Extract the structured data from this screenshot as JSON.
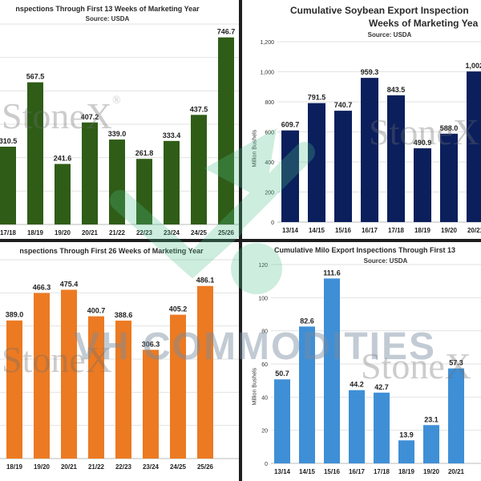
{
  "watermarks": {
    "stonex": "StoneX",
    "stonex_reg": "®",
    "vh_commodities": "VH COMMODITIES"
  },
  "chart_data": [
    {
      "type": "bar",
      "title": "nspections Through First 13 Weeks of Marketing Year",
      "source": "Source: USDA",
      "ylabel": "",
      "color": "#2f5d17",
      "categories": [
        "17/18",
        "18/19",
        "19/20",
        "20/21",
        "21/22",
        "22/23",
        "23/24",
        "24/25",
        "25/26"
      ],
      "values": [
        310.5,
        567.5,
        241.6,
        407.2,
        339.0,
        261.8,
        333.4,
        437.5,
        746.7
      ],
      "labels": [
        "310.5",
        "567.5",
        "241.6",
        "407.2",
        "339.0",
        "261.8",
        "333.4",
        "437.5",
        "746.7"
      ],
      "ylim": [
        0,
        800
      ],
      "yticks": [],
      "grid": true
    },
    {
      "type": "bar",
      "title": "Cumulative Soybean Export Inspection",
      "title2": "Weeks of Marketing Yea",
      "source": "Source: USDA",
      "ylabel": "Million Bushels",
      "color": "#0b1f5c",
      "categories": [
        "13/14",
        "14/15",
        "15/16",
        "16/17",
        "17/18",
        "18/19",
        "19/20",
        "20/21"
      ],
      "values": [
        609.7,
        791.5,
        740.7,
        959.3,
        843.5,
        490.9,
        588.0,
        1002.0
      ],
      "labels": [
        "609.7",
        "791.5",
        "740.7",
        "959.3",
        "843.5",
        "490.9",
        "588.0",
        "1,002."
      ],
      "ylim": [
        0,
        1200
      ],
      "yticks": [
        "0",
        "200",
        "400",
        "600",
        "800",
        "1,000",
        "1,200"
      ],
      "grid": true
    },
    {
      "type": "bar",
      "title": "nspections Through First 26 Weeks of Marketing Year",
      "source": "",
      "ylabel": "",
      "color": "#ec7a22",
      "categories": [
        "18/19",
        "19/20",
        "20/21",
        "21/22",
        "22/23",
        "23/24",
        "24/25",
        "25/26"
      ],
      "values": [
        389.0,
        466.3,
        475.4,
        400.7,
        388.6,
        306.3,
        405.2,
        486.1
      ],
      "labels": [
        "389.0",
        "466.3",
        "475.4",
        "400.7",
        "388.6",
        "306.3",
        "405.2",
        "486.1"
      ],
      "ylim": [
        0,
        560
      ],
      "yticks": [],
      "grid": true
    },
    {
      "type": "bar",
      "title": "Cumulative Milo Export Inspections Through First 13",
      "source": "Source: USDA",
      "ylabel": "Million Bushels",
      "color": "#3f8fd6",
      "categories": [
        "13/14",
        "14/15",
        "15/16",
        "16/17",
        "17/18",
        "18/19",
        "19/20",
        "20/21"
      ],
      "values": [
        50.7,
        82.6,
        111.6,
        44.2,
        42.7,
        13.9,
        23.1,
        57.3
      ],
      "labels": [
        "50.7",
        "82.6",
        "111.6",
        "44.2",
        "42.7",
        "13.9",
        "23.1",
        "57.3"
      ],
      "ylim": [
        0,
        120
      ],
      "yticks": [
        "0",
        "20",
        "40",
        "60",
        "80",
        "100",
        "120"
      ],
      "grid": true
    }
  ]
}
